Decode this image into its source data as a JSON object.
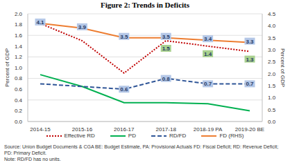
{
  "chart_data": {
    "type": "line",
    "title": "Figure 2: Trends in Deficits",
    "categories": [
      "2014-15",
      "2015-16",
      "2016-17",
      "2017-18",
      "2018-19 PA",
      "2019-20 BE"
    ],
    "series": [
      {
        "name": "Effective RD",
        "color": "#c00000",
        "line_style": "dotted",
        "values": [
          1.82,
          1.5,
          0.9,
          1.5,
          1.4,
          1.3
        ],
        "value_labels": [
          null,
          null,
          null,
          "1.5",
          "1.4",
          "1.3"
        ]
      },
      {
        "name": "PD",
        "color": "#00b050",
        "line_style": "solid",
        "values": [
          0.87,
          0.65,
          0.35,
          0.35,
          0.33,
          0.2
        ],
        "value_labels": [
          null,
          null,
          null,
          null,
          null,
          null
        ]
      },
      {
        "name": "RD/FD",
        "color": "#2f5597",
        "line_style": "dashed",
        "values": [
          0.7,
          0.65,
          0.6,
          0.8,
          0.7,
          0.7
        ],
        "value_labels": [
          null,
          null,
          "0.6",
          "0.8",
          "0.7",
          "0.7"
        ]
      },
      {
        "name": "FD (RHS)",
        "color": "#ed7d31",
        "line_style": "solid",
        "axis": "y2",
        "values": [
          4.1,
          3.9,
          3.5,
          3.5,
          3.4,
          3.3
        ],
        "value_labels": [
          "4.1",
          "3.9",
          "3.5",
          "3.5",
          "3.4",
          "3.3"
        ]
      }
    ],
    "ylim": [
      0,
      2
    ],
    "yticks": [
      {
        "value": 0,
        "label": "0.0"
      },
      0.2,
      0.4,
      0.6,
      0.8,
      {
        "value": 1,
        "label": "1.0"
      },
      1.2,
      1.4,
      1.6,
      1.8,
      {
        "value": 2,
        "label": "2.0"
      }
    ],
    "y2lim": [
      0,
      4.5
    ],
    "y2ticks": [
      {
        "value": 0,
        "label": "0.0"
      },
      0.5,
      {
        "value": 1,
        "label": "1.0"
      },
      1.5,
      {
        "value": 2,
        "label": "2.0"
      },
      2.5,
      {
        "value": 3,
        "label": "3.0"
      },
      3.5,
      {
        "value": 4,
        "label": "4.0"
      },
      4.5
    ],
    "ylabel": "Percent of GDP",
    "y2label": "Percent of GDP",
    "grid": true,
    "legend": "bottom",
    "source": "Source: Union Budget Documents & CGA BE: Budget Estimate, PA: Provisional Actuals FD: Fiscal Deficit; RD: Revenue Deficit; PD: Primary Deficit.",
    "note": "Note: RD/FD has no units."
  }
}
